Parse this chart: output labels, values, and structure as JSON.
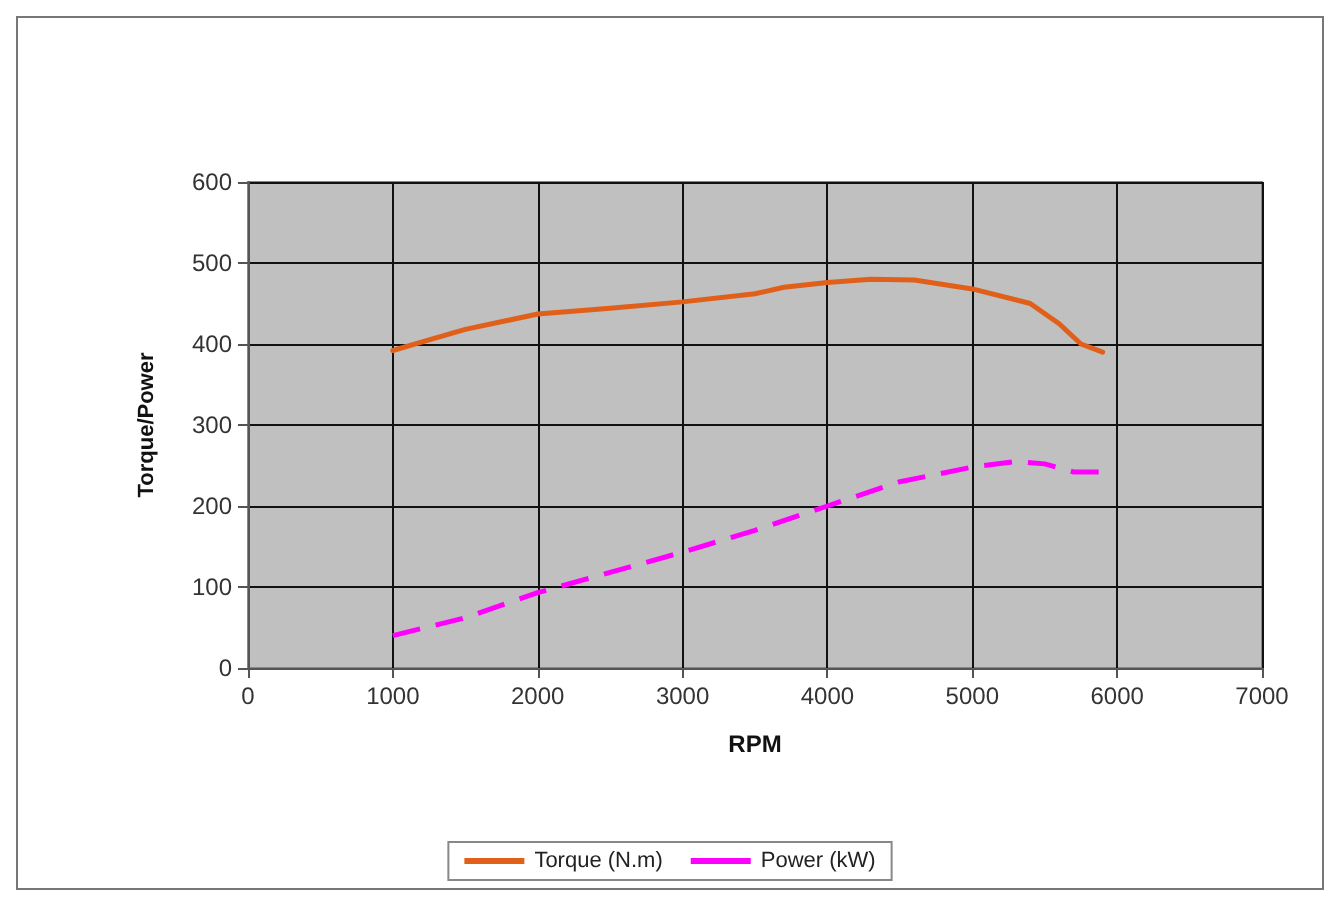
{
  "chart_data": {
    "type": "line",
    "xlabel": "RPM",
    "ylabel": "Torque/Power",
    "xlim": [
      0,
      7000
    ],
    "xticks": [
      0,
      1000,
      2000,
      3000,
      4000,
      5000,
      6000,
      7000
    ],
    "ylim": [
      0,
      600
    ],
    "yticks": [
      0,
      100,
      200,
      300,
      400,
      500,
      600
    ],
    "grid": true,
    "legend": "bottom",
    "marker": "none",
    "series": [
      {
        "name": "Torque (N.m)",
        "color": "#e0601a",
        "line_style": "solid",
        "x": [
          1000,
          1250,
          1500,
          2000,
          2500,
          3000,
          3500,
          3700,
          4000,
          4300,
          4600,
          5000,
          5400,
          5600,
          5750,
          5900
        ],
        "values": [
          392,
          405,
          418,
          437,
          444,
          452,
          462,
          470,
          476,
          480,
          479,
          468,
          450,
          425,
          400,
          390
        ]
      },
      {
        "name": "Power (kW)",
        "color": "#ff00ff",
        "line_style": "dashed",
        "x": [
          1000,
          1500,
          2000,
          2500,
          3000,
          3500,
          4000,
          4500,
          5000,
          5300,
          5500,
          5700,
          5900
        ],
        "values": [
          40,
          62,
          93,
          118,
          143,
          170,
          200,
          230,
          248,
          255,
          252,
          242,
          242
        ]
      }
    ]
  }
}
